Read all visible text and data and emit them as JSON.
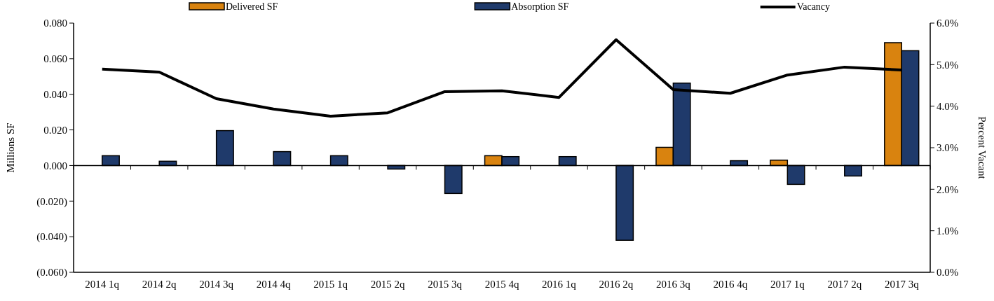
{
  "chart_data": {
    "type": "bar",
    "ylabel": "Millions SF",
    "y2label": "Percent Vacant",
    "categories": [
      "2014 1q",
      "2014 2q",
      "2014 3q",
      "2014 4q",
      "2015 1q",
      "2015 2q",
      "2015 3q",
      "2015 4q",
      "2016 1q",
      "2016 2q",
      "2016 3q",
      "2016 4q",
      "2017 1q",
      "2017 2q",
      "2017 3q"
    ],
    "series": [
      {
        "name": "Delivered SF",
        "color": "#d9830f",
        "values": [
          null,
          null,
          null,
          null,
          null,
          null,
          null,
          0.0055,
          null,
          null,
          0.0102,
          null,
          0.003,
          null,
          0.069
        ]
      },
      {
        "name": "Absorption SF",
        "color": "#1f3a6b",
        "values": [
          0.0055,
          0.0024,
          0.0196,
          0.0078,
          0.0055,
          -0.002,
          -0.0157,
          0.005,
          0.005,
          -0.042,
          0.0463,
          0.0027,
          -0.0106,
          -0.0059,
          0.0645
        ]
      },
      {
        "name": "Vacancy",
        "type": "line",
        "axis": "y2",
        "color": "#000000",
        "values": [
          4.89,
          4.82,
          4.18,
          3.93,
          3.76,
          3.84,
          4.35,
          4.37,
          4.21,
          5.6,
          4.4,
          4.31,
          4.75,
          4.94,
          4.87
        ]
      }
    ],
    "ylim": [
      -0.06,
      0.08
    ],
    "yticks": [
      {
        "value": -0.06,
        "label": "(0.060)"
      },
      {
        "value": -0.04,
        "label": "(0.040)"
      },
      {
        "value": -0.02,
        "label": "(0.020)"
      },
      {
        "value": 0,
        "label": "0.000"
      },
      {
        "value": 0.02,
        "label": "0.020"
      },
      {
        "value": 0.04,
        "label": "0.040"
      },
      {
        "value": 0.06,
        "label": "0.060"
      },
      {
        "value": 0.08,
        "label": "0.080"
      }
    ],
    "y2lim": [
      0,
      6
    ],
    "y2ticks": [
      {
        "value": 0,
        "label": "0.0%"
      },
      {
        "value": 1,
        "label": "1.0%"
      },
      {
        "value": 2,
        "label": "2.0%"
      },
      {
        "value": 3,
        "label": "3.0%"
      },
      {
        "value": 4,
        "label": "4.0%"
      },
      {
        "value": 5,
        "label": "5.0%"
      },
      {
        "value": 6,
        "label": "6.0%"
      }
    ],
    "legend": "top",
    "marker": "none",
    "line_style": "solid"
  }
}
